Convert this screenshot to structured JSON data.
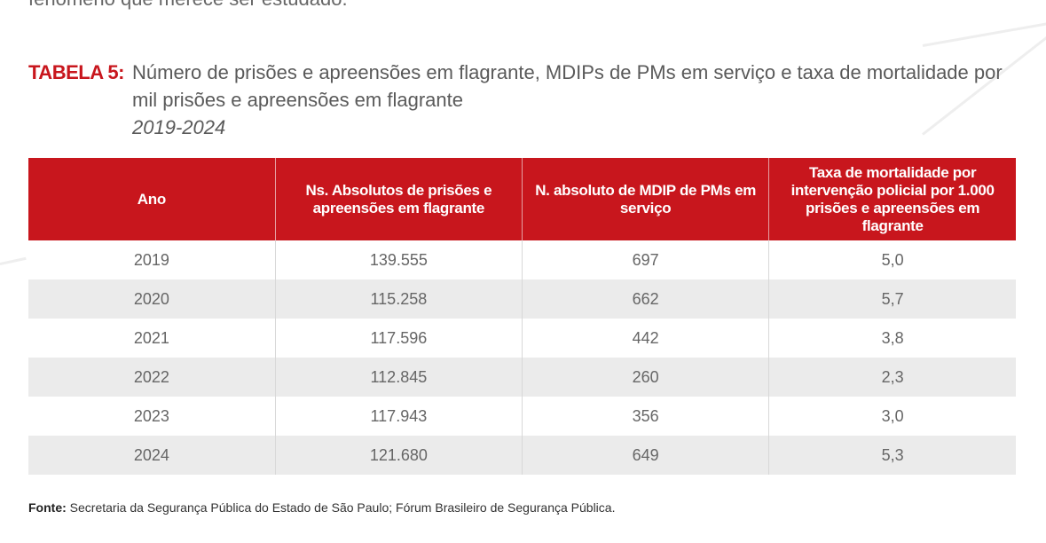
{
  "prior_text": "fenômeno que merece ser estudado.",
  "title": {
    "label": "TABELA 5:",
    "text": "Número de prisões e apreensões em flagrante, MDIPs de PMs em serviço e taxa de mortalidade por mil prisões e apreensões em flagrante",
    "period": "2019-2024"
  },
  "table": {
    "headers": [
      "Ano",
      "Ns. Absolutos de prisões e apreensões em flagrante",
      "N. absoluto de MDIP de PMs em serviço",
      "Taxa de mortalidade por intervenção policial por 1.000 prisões e apreensões em flagrante"
    ],
    "rows": [
      [
        "2019",
        "139.555",
        "697",
        "5,0"
      ],
      [
        "2020",
        "115.258",
        "662",
        "5,7"
      ],
      [
        "2021",
        "117.596",
        "442",
        "3,8"
      ],
      [
        "2022",
        "112.845",
        "260",
        "2,3"
      ],
      [
        "2023",
        "117.943",
        "356",
        "3,0"
      ],
      [
        "2024",
        "121.680",
        "649",
        "5,3"
      ]
    ]
  },
  "source": {
    "label": "Fonte:",
    "text": "Secretaria da Segurança Pública do Estado de São Paulo; Fórum Brasileiro de Segurança Pública."
  },
  "colors": {
    "accent": "#c8161d",
    "row_alt": "#ebebeb"
  }
}
